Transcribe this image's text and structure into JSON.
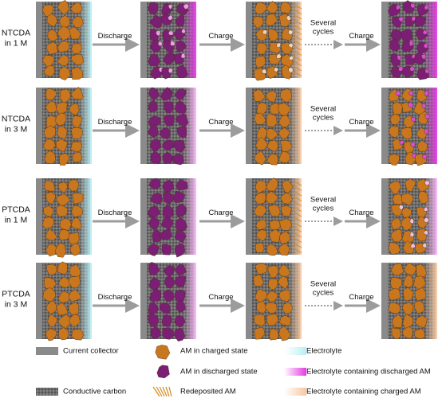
{
  "rows": [
    {
      "label": "NTCDA\nin 1 M",
      "steps": [
        "Discharge",
        "Charge",
        "Several\ncycles",
        "Charge"
      ]
    },
    {
      "label": "NTCDA\nin 3 M",
      "steps": [
        "Discharge",
        "Charge",
        "Several\ncycles",
        "Charge"
      ]
    },
    {
      "label": "PTCDA\nin 1 M",
      "steps": [
        "Discharge",
        "Charge",
        "Several\ncycles",
        "Charge"
      ]
    },
    {
      "label": "PTCDA\nin 3 M",
      "steps": [
        "Discharge",
        "Charge",
        "Several\ncycles",
        "Charge"
      ]
    }
  ],
  "legend": {
    "current_collector": "Current collector",
    "conductive_carbon": "Conductive carbon",
    "am_charged": "AM in charged state",
    "am_discharged": "AM in discharged state",
    "redeposited": "Redeposited AM",
    "electrolyte": "Electrolyte",
    "electrolyte_discharged": "Electrolyte containing discharged AM",
    "electrolyte_charged": "Electrolyte containing charged AM"
  }
}
